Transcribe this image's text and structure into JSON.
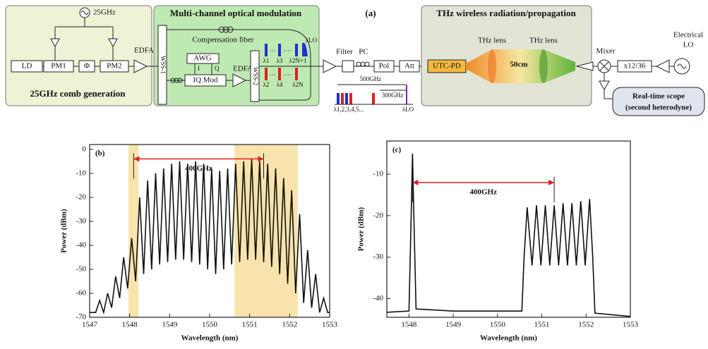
{
  "diagram": {
    "panel_label": "(a)",
    "comb": {
      "title": "25GHz comb generation",
      "rf": "25GHz",
      "ld": "LD",
      "pm1": "PM1",
      "phase": "Φ",
      "pm2": "PM2",
      "edfa": "EDFA"
    },
    "modulation": {
      "title": "Multi-channel optical modulation",
      "fiber": "Compensation fiber",
      "wss1": "WSS-1",
      "awg": "AWG",
      "i": "I",
      "q": "Q",
      "iq": "IQ Mod",
      "edfa": "EDFA",
      "wss2": "WSS-2",
      "top_labels": [
        "λ1",
        "λ3",
        "λ2N+1"
      ],
      "bottom_labels": [
        "λ2",
        "λ4",
        "λ2N"
      ],
      "lo": "λLO"
    },
    "link": {
      "filter": "Filter",
      "pc": "PC",
      "pol": "Pol",
      "att": "Att",
      "span1": "500GHz",
      "span2": "300GHz",
      "lambdas": "λ1,2,3,4,5...",
      "lo": "λLO"
    },
    "thz": {
      "title": "THz wireless radiation/propagation",
      "pd": "UTC-PD",
      "lens1": "THz lens",
      "lens2": "THz lens",
      "distance": "50cm"
    },
    "receiver": {
      "mixer": "Mixer",
      "mult": "x12/36",
      "lo1": "Electrical",
      "lo2": "LO",
      "scope1": "Real-time scope",
      "scope2": "(second heterodyne)"
    }
  },
  "chart_data": [
    {
      "type": "line",
      "panel_label": "(b)",
      "xlabel": "Wavelength (nm)",
      "ylabel": "Power (dBm)",
      "xlim": [
        1547,
        1553
      ],
      "ylim": [
        -70,
        2
      ],
      "xticks": [
        1547,
        1548,
        1549,
        1550,
        1551,
        1552,
        1553
      ],
      "yticks": [
        -70,
        -60,
        -50,
        -40,
        -30,
        -20,
        -10,
        0
      ],
      "shaded_spans": [
        [
          1547.97,
          1548.22
        ],
        [
          1550.62,
          1552.2
        ]
      ],
      "shade_color": "#f5d990",
      "annotation": {
        "text": "400GHz",
        "x": [
          1548.1,
          1551.35
        ],
        "y": -4,
        "color": "#e02020"
      },
      "x": [
        1547.0,
        1547.15,
        1547.25,
        1547.35,
        1547.45,
        1547.55,
        1547.65,
        1547.75,
        1547.85,
        1547.95,
        1548.05,
        1548.15,
        1548.25,
        1548.35,
        1548.45,
        1548.55,
        1548.65,
        1548.75,
        1548.85,
        1548.95,
        1549.05,
        1549.15,
        1549.25,
        1549.35,
        1549.45,
        1549.55,
        1549.65,
        1549.75,
        1549.85,
        1549.95,
        1550.05,
        1550.15,
        1550.25,
        1550.35,
        1550.45,
        1550.55,
        1550.65,
        1550.75,
        1550.85,
        1550.95,
        1551.05,
        1551.15,
        1551.25,
        1551.35,
        1551.45,
        1551.55,
        1551.65,
        1551.75,
        1551.85,
        1551.95,
        1552.05,
        1552.15,
        1552.25,
        1552.35,
        1552.45,
        1552.55,
        1552.65,
        1552.75,
        1552.85,
        1552.95,
        1553.0
      ],
      "series": [
        {
          "color": "#111111",
          "values": [
            -68,
            -68,
            -63,
            -68,
            -60,
            -66,
            -53,
            -62,
            -45,
            -58,
            -37,
            -55,
            -20,
            -52,
            -13,
            -50,
            -10,
            -48,
            -8,
            -47,
            -6,
            -46,
            -5,
            -46,
            -6,
            -47,
            -5,
            -48,
            -6,
            -50,
            -8,
            -52,
            -9,
            -50,
            -8,
            -48,
            -6,
            -47,
            -5,
            -46,
            -4,
            -46,
            -5,
            -47,
            -6,
            -49,
            -8,
            -52,
            -12,
            -56,
            -17,
            -60,
            -27,
            -64,
            -42,
            -66,
            -52,
            -68,
            -62,
            -68,
            -68
          ]
        }
      ]
    },
    {
      "type": "line",
      "panel_label": "(c)",
      "xlabel": "Wavelength (nm)",
      "ylabel": "Power (dBm)",
      "xlim": [
        1547.5,
        1553
      ],
      "ylim": [
        -44.5,
        -2
      ],
      "xticks": [
        1548,
        1549,
        1550,
        1551,
        1552,
        1553
      ],
      "yticks": [
        -40,
        -30,
        -20,
        -10
      ],
      "annotation": {
        "text": "400GHz",
        "x": [
          1548.08,
          1551.28
        ],
        "y": -12,
        "color": "#e02020"
      },
      "x": [
        1547.5,
        1548.0,
        1548.05,
        1548.08,
        1548.11,
        1548.16,
        1549.0,
        1550.0,
        1550.55,
        1550.6,
        1550.67,
        1550.78,
        1550.88,
        1550.98,
        1551.08,
        1551.18,
        1551.28,
        1551.38,
        1551.48,
        1551.58,
        1551.68,
        1551.78,
        1551.88,
        1551.98,
        1552.08,
        1552.15,
        1552.2,
        1553.0
      ],
      "series": [
        {
          "color": "#111111",
          "values": [
            -43.3,
            -43,
            -20,
            -5,
            -20,
            -42.5,
            -43,
            -43,
            -43,
            -30,
            -18,
            -32,
            -17.5,
            -32,
            -17.5,
            -32,
            -17.5,
            -32,
            -17,
            -32,
            -17,
            -32,
            -16.5,
            -32,
            -16,
            -30,
            -43.5,
            -44.3
          ]
        }
      ]
    }
  ]
}
